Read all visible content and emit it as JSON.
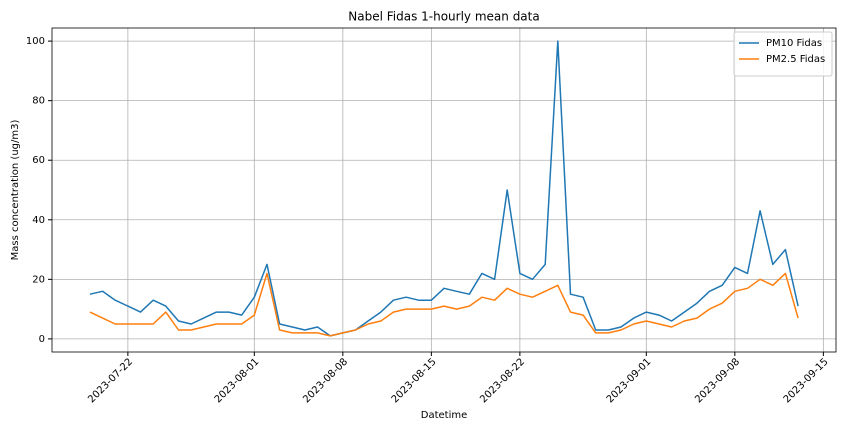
{
  "chart_data": {
    "type": "line",
    "title": "Nabel Fidas 1-hourly mean data",
    "xlabel": "Datetime",
    "ylabel": "Mass concentration (ug/m3)",
    "x": [
      "2023-07-19",
      "2023-07-20",
      "2023-07-21",
      "2023-07-22",
      "2023-07-23",
      "2023-07-24",
      "2023-07-25",
      "2023-07-26",
      "2023-07-27",
      "2023-07-28",
      "2023-07-29",
      "2023-07-30",
      "2023-07-31",
      "2023-08-01",
      "2023-08-02",
      "2023-08-03",
      "2023-08-04",
      "2023-08-05",
      "2023-08-06",
      "2023-08-07",
      "2023-08-08",
      "2023-08-09",
      "2023-08-10",
      "2023-08-11",
      "2023-08-12",
      "2023-08-13",
      "2023-08-14",
      "2023-08-15",
      "2023-08-16",
      "2023-08-17",
      "2023-08-18",
      "2023-08-19",
      "2023-08-20",
      "2023-08-21",
      "2023-08-22",
      "2023-08-23",
      "2023-08-24",
      "2023-08-25",
      "2023-08-26",
      "2023-08-27",
      "2023-08-28",
      "2023-08-29",
      "2023-08-30",
      "2023-08-31",
      "2023-09-01",
      "2023-09-02",
      "2023-09-03",
      "2023-09-04",
      "2023-09-05",
      "2023-09-06",
      "2023-09-07",
      "2023-09-08",
      "2023-09-09",
      "2023-09-10",
      "2023-09-11",
      "2023-09-12",
      "2023-09-13"
    ],
    "series": [
      {
        "name": "PM10 Fidas",
        "color": "#1f77b4",
        "values": [
          15,
          16,
          13,
          11,
          9,
          13,
          11,
          6,
          5,
          7,
          9,
          9,
          8,
          14,
          25,
          5,
          4,
          3,
          4,
          1,
          2,
          3,
          6,
          9,
          13,
          14,
          13,
          13,
          17,
          16,
          15,
          22,
          20,
          50,
          22,
          20,
          25,
          100,
          15,
          14,
          3,
          3,
          4,
          7,
          9,
          8,
          6,
          9,
          12,
          16,
          18,
          24,
          22,
          43,
          25,
          30,
          11
        ]
      },
      {
        "name": "PM2.5 Fidas",
        "color": "#ff7f0e",
        "values": [
          9,
          7,
          5,
          5,
          5,
          5,
          9,
          3,
          3,
          4,
          5,
          5,
          5,
          8,
          22,
          3,
          2,
          2,
          2,
          1,
          2,
          3,
          5,
          6,
          9,
          10,
          10,
          10,
          11,
          10,
          11,
          14,
          13,
          17,
          15,
          14,
          16,
          18,
          9,
          8,
          2,
          2,
          3,
          5,
          6,
          5,
          4,
          6,
          7,
          10,
          12,
          16,
          17,
          20,
          18,
          22,
          7
        ]
      }
    ],
    "xlim": [
      "2023-07-16",
      "2023-09-16"
    ],
    "xticks": [
      "2023-07-22",
      "2023-08-01",
      "2023-08-08",
      "2023-08-15",
      "2023-08-22",
      "2023-09-01",
      "2023-09-08",
      "2023-09-15"
    ],
    "ylim": [
      -4.4,
      104.4
    ],
    "yticks": [
      0,
      20,
      40,
      60,
      80,
      100
    ],
    "grid": true,
    "legend": "upper right"
  }
}
